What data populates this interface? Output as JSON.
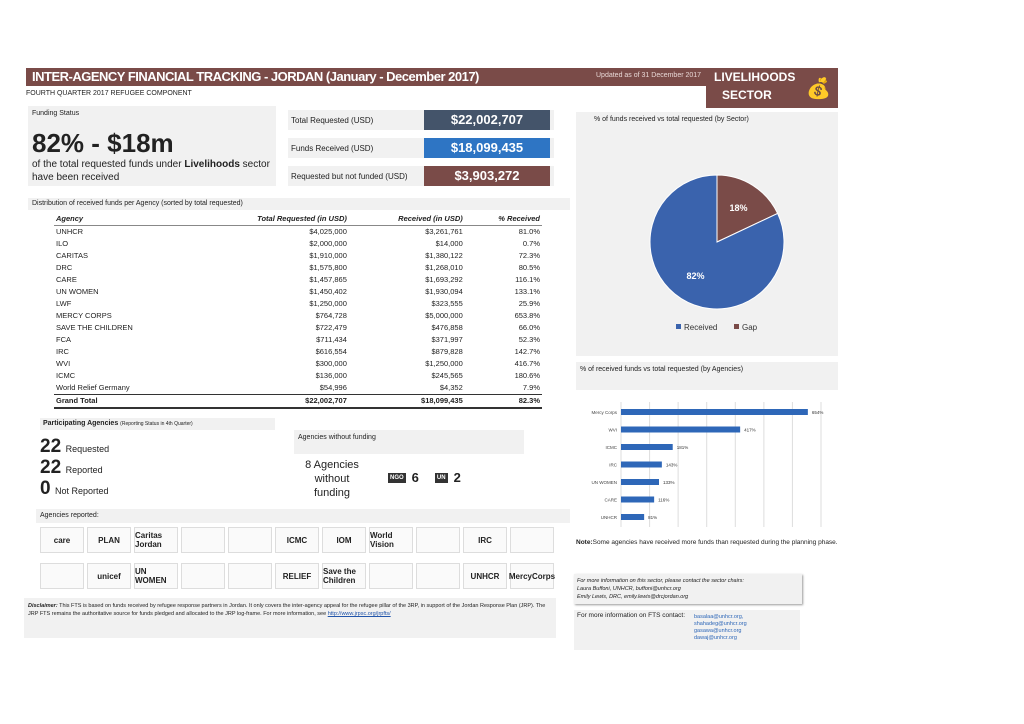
{
  "header": {
    "title": "INTER-AGENCY FINANCIAL TRACKING - JORDAN (January - December 2017)",
    "updated": "Updated as of 31 December 2017",
    "sector_line1": "LIVELIHOODS",
    "sector_line2": "SECTOR",
    "subtitle": "FOURTH QUARTER 2017 REFUGEE COMPONENT",
    "sector_icon": "money-bag-icon"
  },
  "funding": {
    "label": "Funding Status",
    "headline": "82% - $18m",
    "desc_pre": "of the total requested funds under ",
    "desc_bold": "Livelihoods",
    "desc_post": " sector have been received"
  },
  "totals": [
    {
      "label": "Total Requested (USD)",
      "value": "$22,002,707",
      "color": "#44546a"
    },
    {
      "label": "Funds Received (USD)",
      "value": "$18,099,435",
      "color": "#2e75c4"
    },
    {
      "label": "Requested but not funded (USD)",
      "value": "$3,903,272",
      "color": "#7a4b48"
    }
  ],
  "distribution": {
    "title": "Distribution of received funds per Agency (sorted by total requested)",
    "columns": [
      "Agency",
      "Total Requested (in USD)",
      "Received (in USD)",
      "% Received"
    ],
    "rows": [
      [
        "UNHCR",
        "$4,025,000",
        "$3,261,761",
        "81.0%"
      ],
      [
        "ILO",
        "$2,000,000",
        "$14,000",
        "0.7%"
      ],
      [
        "CARITAS",
        "$1,910,000",
        "$1,380,122",
        "72.3%"
      ],
      [
        "DRC",
        "$1,575,800",
        "$1,268,010",
        "80.5%"
      ],
      [
        "CARE",
        "$1,457,865",
        "$1,693,292",
        "116.1%"
      ],
      [
        "UN WOMEN",
        "$1,450,402",
        "$1,930,094",
        "133.1%"
      ],
      [
        "LWF",
        "$1,250,000",
        "$323,555",
        "25.9%"
      ],
      [
        "MERCY CORPS",
        "$764,728",
        "$5,000,000",
        "653.8%"
      ],
      [
        "SAVE THE CHILDREN",
        "$722,479",
        "$476,858",
        "66.0%"
      ],
      [
        "FCA",
        "$711,434",
        "$371,997",
        "52.3%"
      ],
      [
        "IRC",
        "$616,554",
        "$879,828",
        "142.7%"
      ],
      [
        "WVI",
        "$300,000",
        "$1,250,000",
        "416.7%"
      ],
      [
        "ICMC",
        "$136,000",
        "$245,565",
        "180.6%"
      ],
      [
        "World Relief Germany",
        "$54,996",
        "$4,352",
        "7.9%"
      ]
    ],
    "total": [
      "Grand Total",
      "$22,002,707",
      "$18,099,435",
      "82.3%"
    ]
  },
  "participating": {
    "title": "Participating Agencies",
    "note": "(Reporting Status in 4th Quarter)",
    "items": [
      {
        "n": "22",
        "label": "Requested"
      },
      {
        "n": "22",
        "label": "Reported"
      },
      {
        "n": "0",
        "label": "Not Reported"
      }
    ]
  },
  "without": {
    "title": "Agencies without funding",
    "text": "8 Agencies without funding",
    "ngo_label": "NGO",
    "ngo": "6",
    "un_label": "UN",
    "un": "2"
  },
  "reported": {
    "title": "Agencies reported:",
    "logos": [
      "care",
      "PLAN",
      "Caritas Jordan",
      "",
      "",
      "ICMC",
      "IOM",
      "World Vision",
      "",
      "IRC",
      "",
      "",
      "unicef",
      "UN WOMEN",
      "",
      "",
      "RELIEF",
      "Save the Children",
      "",
      "",
      "UNHCR",
      "MercyCorps"
    ]
  },
  "disclaimer": {
    "label": "Disclaimer:",
    "text": "This FTS is based on funds received by refugee response partners in Jordan. It only covers the inter-agency appeal for the refugee pillar of the 3RP, in support of the Jordan Response Plan (JRP). The JRP FTS remains the authoritative source for funds pledged and allocated to the JRP log-frame. For more information, see ",
    "link": "http://www.jrpsc.org/jrpfts/"
  },
  "pie": {
    "title": "% of funds received vs total requested (by Sector)"
  },
  "bars": {
    "title": "% of received funds vs total requested (by Agencies)"
  },
  "note": {
    "label": "Note:",
    "text": "Some agencies have received more funds than requested during the planning phase."
  },
  "contact": {
    "lines": [
      "For more information on this sector, please contact the sector chairs:",
      "Laura Buffoni, UNHCR, buffoni@unhcr.org",
      "Emily Lewis, DRC, emily.lewis@drcjordan.org"
    ]
  },
  "fts": {
    "label": "For more information on FTS contact:",
    "emails": [
      "basalaa@unhcr.org,",
      "shahadeg@unhcr.org",
      "gasawa@unhcr.org",
      "dawaj@unhcr.org"
    ]
  },
  "chart_data": [
    {
      "type": "pie",
      "title": "% of funds received vs total requested (by Sector)",
      "categories": [
        "Received",
        "Gap"
      ],
      "values": [
        82,
        18
      ],
      "colors": [
        "#3a63ad",
        "#7a4b48"
      ],
      "legend": "bottom"
    },
    {
      "type": "bar",
      "orientation": "horizontal",
      "title": "% of received funds vs total requested (by Agencies)",
      "categories": [
        "Mercy Corps",
        "WVI",
        "ICMC",
        "IRC",
        "UN WOMEN",
        "CARE",
        "UNHCR"
      ],
      "values": [
        654,
        417,
        181,
        143,
        133,
        116,
        81
      ],
      "labels": [
        "654%",
        "417%",
        "181%",
        "143%",
        "133%",
        "116%",
        "81%"
      ],
      "xlim": [
        0,
        700
      ],
      "grid": true,
      "color": "#2e67b8"
    }
  ]
}
